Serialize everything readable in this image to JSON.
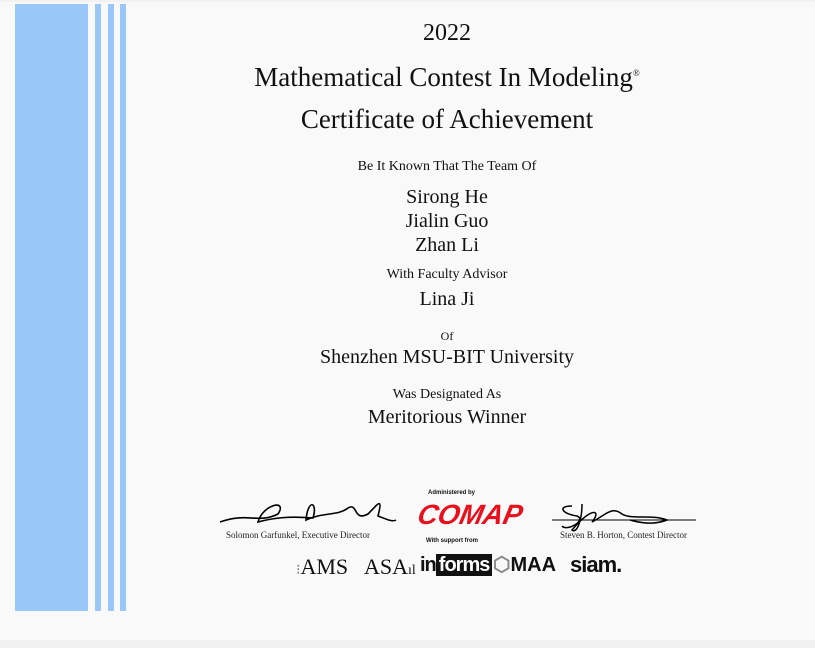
{
  "certificate": {
    "year": "2022",
    "contest": "Mathematical Contest In Modeling",
    "registered_mark": "®",
    "title": "Certificate of Achievement",
    "intro": "Be It Known That The Team Of",
    "members": [
      "Sirong He",
      "Jialin Guo",
      "Zhan Li"
    ],
    "advisor_label": "With Faculty Advisor",
    "advisor": "Lina Ji",
    "of_label": "Of",
    "institution": "Shenzhen MSU-BIT University",
    "designation_label": "Was Designated As",
    "designation": "Meritorious Winner"
  },
  "signatures": {
    "left_caption": "Solomon Garfunkel, Executive Director",
    "right_caption": "Steven B. Horton, Contest Director"
  },
  "logos": {
    "administered_by": "Administered by",
    "comap": "COMAP",
    "support": "With support from",
    "sponsors": [
      "AMS",
      "ASA",
      "informs",
      "MAA",
      "siam"
    ]
  },
  "colors": {
    "stripe": "#99c7f7",
    "comap_red": "#e8101c"
  }
}
